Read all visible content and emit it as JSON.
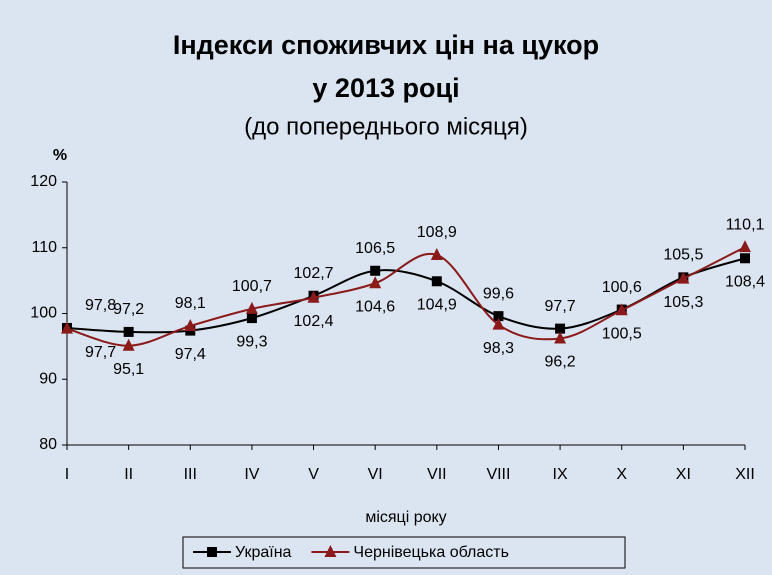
{
  "chart_data": {
    "type": "line",
    "title": [
      "Індекси споживчих цін на цукор",
      "у 2013 році"
    ],
    "subtitle": "(до попереднього місяця)",
    "y_label": "%",
    "x_label": "місяці року",
    "categories": [
      "I",
      "II",
      "III",
      "IV",
      "V",
      "VI",
      "VII",
      "VIII",
      "IX",
      "X",
      "XI",
      "XII"
    ],
    "series": [
      {
        "name": "Україна",
        "color": "#000000",
        "marker": "square",
        "values": [
          97.8,
          97.2,
          97.4,
          99.3,
          102.7,
          106.5,
          104.9,
          99.6,
          97.7,
          100.6,
          105.5,
          108.4
        ],
        "value_labels": [
          "97,8",
          "97,2",
          "97,4",
          "99,3",
          "102,7",
          "106,5",
          "104,9",
          "99,6",
          "97,7",
          "100,6",
          "105,5",
          "108,4"
        ]
      },
      {
        "name": "Чернівецька область",
        "color": "#8b1a1a",
        "marker": "triangle",
        "values": [
          97.7,
          95.1,
          98.1,
          100.7,
          102.4,
          104.6,
          108.9,
          98.3,
          96.2,
          100.5,
          105.3,
          110.1
        ],
        "value_labels": [
          "97,7",
          "95,1",
          "98,1",
          "100,7",
          "102,4",
          "104,6",
          "108,9",
          "98,3",
          "96,2",
          "100,5",
          "105,3",
          "110,1"
        ]
      }
    ],
    "ylim": [
      80,
      120
    ],
    "yticks": [
      80,
      90,
      100,
      110,
      120
    ],
    "grid": false,
    "legend": "bottom"
  }
}
